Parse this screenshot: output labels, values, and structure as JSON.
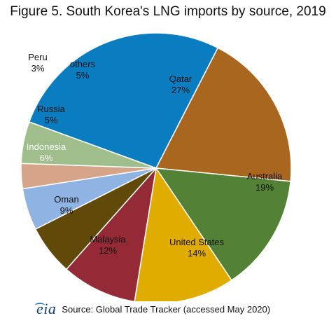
{
  "chart_data": {
    "type": "pie",
    "title": "Figure 5. South Korea's LNG imports by source, 2019",
    "slices": [
      {
        "label": "Qatar",
        "pct_label": "27%",
        "value": 27,
        "color": "#0a7cc0"
      },
      {
        "label": "Australia",
        "pct_label": "19%",
        "value": 19,
        "color": "#a8661f"
      },
      {
        "label": "United States",
        "pct_label": "14%",
        "value": 14,
        "color": "#538135"
      },
      {
        "label": "Malaysia",
        "pct_label": "12%",
        "value": 12,
        "color": "#e0ac00"
      },
      {
        "label": "Oman",
        "pct_label": "9%",
        "value": 9,
        "color": "#942a35"
      },
      {
        "label": "Indonesia",
        "pct_label": "6%",
        "value": 6,
        "color": "#614a09"
      },
      {
        "label": "Russia",
        "pct_label": "5%",
        "value": 5,
        "color": "#8fb4e3"
      },
      {
        "label": "Peru",
        "pct_label": "3%",
        "value": 3,
        "color": "#d6a589"
      },
      {
        "label": "others",
        "pct_label": "5%",
        "value": 5,
        "color": "#9fbe8c"
      }
    ]
  },
  "footer": {
    "logo_text": "eia",
    "source": "Source: Global Trade Tracker (accessed May 2020)"
  }
}
